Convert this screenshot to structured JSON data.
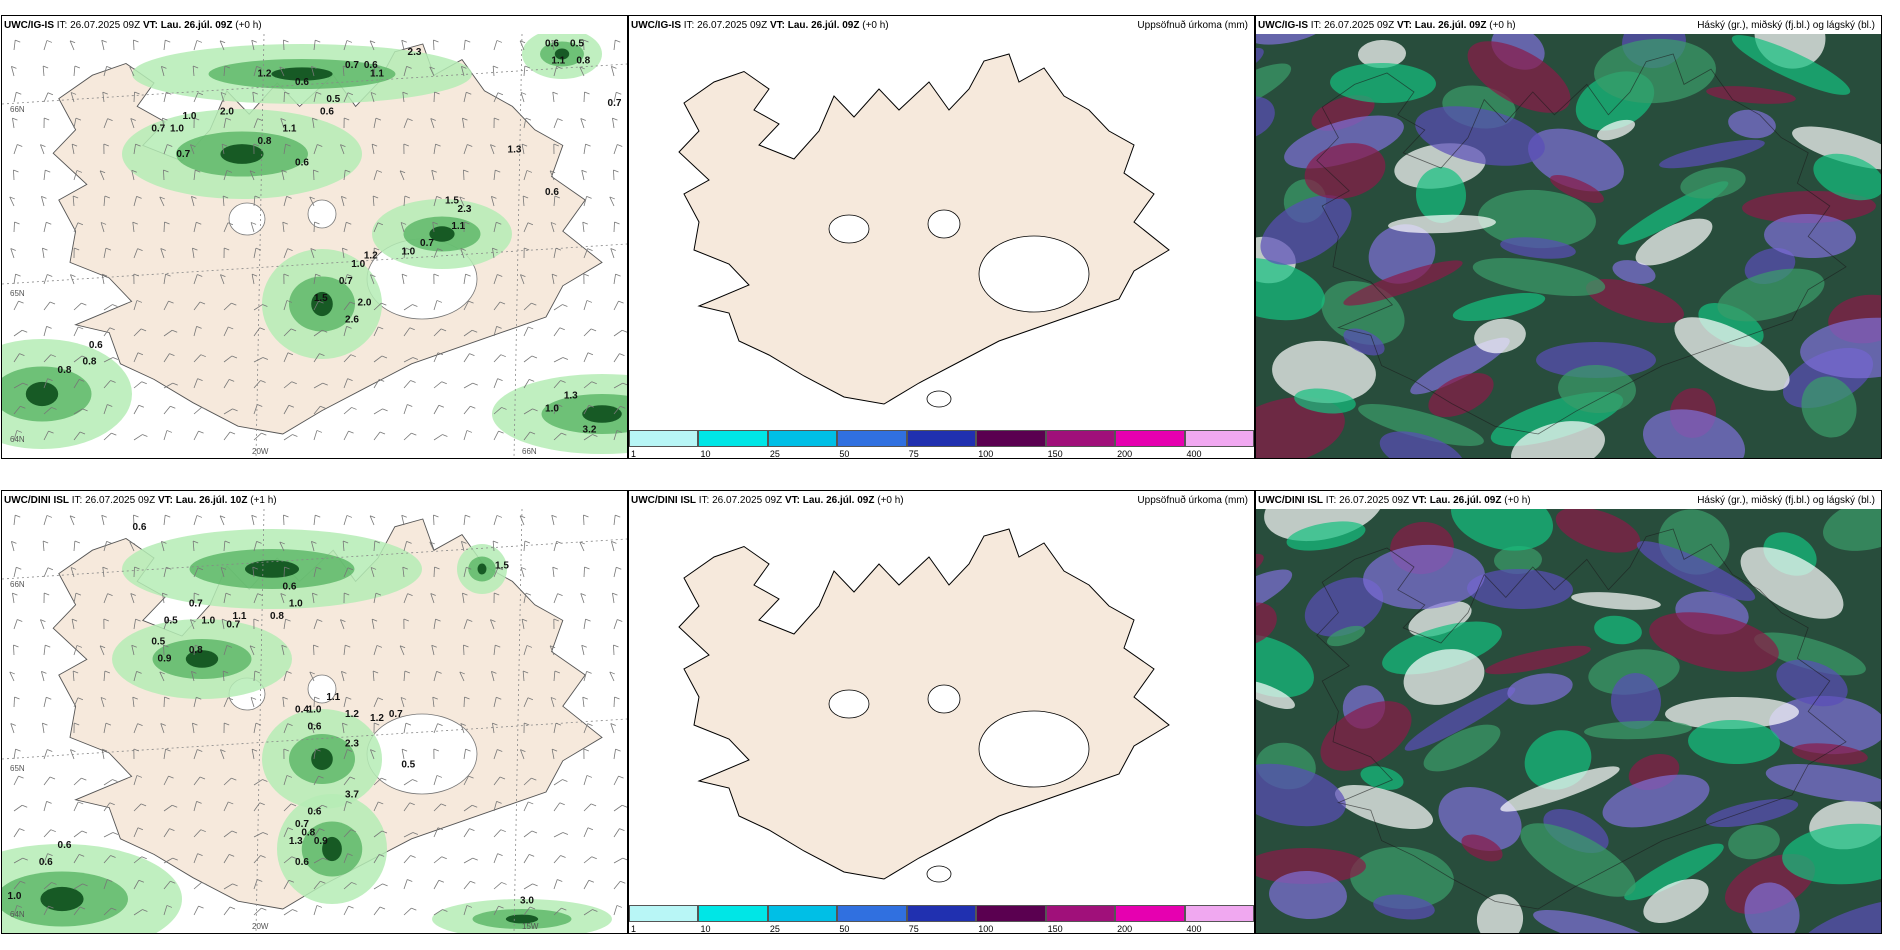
{
  "colors": {
    "land": "#f6e9dc",
    "sea": "#ffffff",
    "precip_light": "#b5ecb5",
    "precip_mid": "#53b15f",
    "precip_dark": "#0d4f1c",
    "cloud_dark": "#284d3c",
    "cloud_green": "#14c07f",
    "cloud_purple": "#5a4db8",
    "cloud_red": "#8a1a47",
    "legend": [
      "#b8f6f6",
      "#00e6e6",
      "#00bfe6",
      "#3070e0",
      "#2030b0",
      "#5a0050",
      "#a0107a",
      "#e600b0",
      "#f0a8f0"
    ]
  },
  "panels": [
    {
      "model": "UWC/IG-IS",
      "it": "IT: 26.07.2025 09Z",
      "vt_label": "VT:",
      "vt": "Lau. 26.júl. 09Z",
      "lead": "(+0 h)",
      "param": "",
      "coords": [
        "66N",
        "65N",
        "64N",
        "20W",
        "66N"
      ],
      "values": [
        {
          "label": "1.2",
          "cx": 0.42,
          "cy": 0.1
        },
        {
          "label": "1.1",
          "cx": 0.6,
          "cy": 0.1
        },
        {
          "label": "0.7",
          "cx": 0.56,
          "cy": 0.08
        },
        {
          "label": "0.6",
          "cx": 0.59,
          "cy": 0.08
        },
        {
          "label": "0.6",
          "cx": 0.48,
          "cy": 0.12
        },
        {
          "label": "2.3",
          "cx": 0.66,
          "cy": 0.05
        },
        {
          "label": "0.7",
          "cx": 0.25,
          "cy": 0.23
        },
        {
          "label": "1.0",
          "cx": 0.28,
          "cy": 0.23
        },
        {
          "label": "2.0",
          "cx": 0.36,
          "cy": 0.19
        },
        {
          "label": "1.0",
          "cx": 0.3,
          "cy": 0.2
        },
        {
          "label": "0.7",
          "cx": 0.29,
          "cy": 0.29
        },
        {
          "label": "1.1",
          "cx": 0.46,
          "cy": 0.23
        },
        {
          "label": "0.8",
          "cx": 0.42,
          "cy": 0.26
        },
        {
          "label": "0.6",
          "cx": 0.48,
          "cy": 0.31
        },
        {
          "label": "0.5",
          "cx": 0.53,
          "cy": 0.16
        },
        {
          "label": "0.6",
          "cx": 0.52,
          "cy": 0.19
        },
        {
          "label": "1.3",
          "cx": 0.82,
          "cy": 0.28
        },
        {
          "label": "1.5",
          "cx": 0.72,
          "cy": 0.4
        },
        {
          "label": "2.3",
          "cx": 0.74,
          "cy": 0.42
        },
        {
          "label": "1.1",
          "cx": 0.73,
          "cy": 0.46
        },
        {
          "label": "0.6",
          "cx": 0.88,
          "cy": 0.38
        },
        {
          "label": "0.7",
          "cx": 0.68,
          "cy": 0.5
        },
        {
          "label": "1.2",
          "cx": 0.59,
          "cy": 0.53
        },
        {
          "label": "1.0",
          "cx": 0.65,
          "cy": 0.52
        },
        {
          "label": "1.0",
          "cx": 0.57,
          "cy": 0.55
        },
        {
          "label": "0.7",
          "cx": 0.55,
          "cy": 0.59
        },
        {
          "label": "2.0",
          "cx": 0.58,
          "cy": 0.64
        },
        {
          "label": "2.6",
          "cx": 0.56,
          "cy": 0.68
        },
        {
          "label": "1.5",
          "cx": 0.51,
          "cy": 0.63
        },
        {
          "label": "0.6",
          "cx": 0.15,
          "cy": 0.74
        },
        {
          "label": "0.8",
          "cx": 0.14,
          "cy": 0.78
        },
        {
          "label": "0.8",
          "cx": 0.1,
          "cy": 0.8
        },
        {
          "label": "1.0",
          "cx": 0.88,
          "cy": 0.89
        },
        {
          "label": "1.3",
          "cx": 0.91,
          "cy": 0.86
        },
        {
          "label": "3.2",
          "cx": 0.94,
          "cy": 0.94
        },
        {
          "label": "0.6",
          "cx": 0.88,
          "cy": 0.03
        },
        {
          "label": "0.5",
          "cx": 0.92,
          "cy": 0.03
        },
        {
          "label": "1.1",
          "cx": 0.89,
          "cy": 0.07
        },
        {
          "label": "0.8",
          "cx": 0.93,
          "cy": 0.07
        },
        {
          "label": "0.7",
          "cx": 0.98,
          "cy": 0.17
        }
      ]
    },
    {
      "model": "UWC/IG-IS",
      "it": "IT: 26.07.2025 09Z",
      "vt_label": "VT:",
      "vt": "Lau. 26.júl. 09Z",
      "lead": "(+0 h)",
      "param": "Uppsöfnuð úrkoma (mm)",
      "legend_ticks": [
        "1",
        "10",
        "25",
        "50",
        "75",
        "100",
        "150",
        "200",
        "400"
      ]
    },
    {
      "model": "UWC/IG-IS",
      "it": "IT: 26.07.2025 09Z",
      "vt_label": "VT:",
      "vt": "Lau. 26.júl. 09Z",
      "lead": "(+0 h)",
      "param": "Háský (gr.), miðský (fj.bl.) og lágský (bl.)"
    },
    {
      "model": "UWC/DINI ISL",
      "it": "IT: 26.07.2025 09Z",
      "vt_label": "VT:",
      "vt": "Lau. 26.júl. 10Z",
      "lead": "(+1 h)",
      "param": "",
      "coords": [
        "66N",
        "65N",
        "64N",
        "20W",
        "15W"
      ],
      "values": [
        {
          "label": "0.6",
          "cx": 0.22,
          "cy": 0.05
        },
        {
          "label": "1.5",
          "cx": 0.8,
          "cy": 0.14
        },
        {
          "label": "0.6",
          "cx": 0.46,
          "cy": 0.19
        },
        {
          "label": "1.0",
          "cx": 0.47,
          "cy": 0.23
        },
        {
          "label": "0.8",
          "cx": 0.44,
          "cy": 0.26
        },
        {
          "label": "0.7",
          "cx": 0.31,
          "cy": 0.23
        },
        {
          "label": "1.0",
          "cx": 0.33,
          "cy": 0.27
        },
        {
          "label": "1.1",
          "cx": 0.38,
          "cy": 0.26
        },
        {
          "label": "0.7",
          "cx": 0.37,
          "cy": 0.28
        },
        {
          "label": "0.5",
          "cx": 0.27,
          "cy": 0.27
        },
        {
          "label": "0.5",
          "cx": 0.25,
          "cy": 0.32
        },
        {
          "label": "0.8",
          "cx": 0.31,
          "cy": 0.34
        },
        {
          "label": "0.9",
          "cx": 0.26,
          "cy": 0.36
        },
        {
          "label": "1.1",
          "cx": 0.53,
          "cy": 0.45
        },
        {
          "label": "0.4",
          "cx": 0.48,
          "cy": 0.48
        },
        {
          "label": "1.0",
          "cx": 0.5,
          "cy": 0.48
        },
        {
          "label": "1.2",
          "cx": 0.56,
          "cy": 0.49
        },
        {
          "label": "1.2",
          "cx": 0.6,
          "cy": 0.5
        },
        {
          "label": "0.7",
          "cx": 0.63,
          "cy": 0.49
        },
        {
          "label": "0.6",
          "cx": 0.5,
          "cy": 0.52
        },
        {
          "label": "2.3",
          "cx": 0.56,
          "cy": 0.56
        },
        {
          "label": "0.5",
          "cx": 0.65,
          "cy": 0.61
        },
        {
          "label": "3.7",
          "cx": 0.56,
          "cy": 0.68
        },
        {
          "label": "0.6",
          "cx": 0.5,
          "cy": 0.72
        },
        {
          "label": "0.7",
          "cx": 0.48,
          "cy": 0.75
        },
        {
          "label": "0.8",
          "cx": 0.49,
          "cy": 0.77
        },
        {
          "label": "0.9",
          "cx": 0.51,
          "cy": 0.79
        },
        {
          "label": "1.3",
          "cx": 0.47,
          "cy": 0.79
        },
        {
          "label": "0.6",
          "cx": 0.48,
          "cy": 0.84
        },
        {
          "label": "0.6",
          "cx": 0.1,
          "cy": 0.8
        },
        {
          "label": "0.6",
          "cx": 0.07,
          "cy": 0.84
        },
        {
          "label": "1.0",
          "cx": 0.02,
          "cy": 0.92
        },
        {
          "label": "3.0",
          "cx": 0.84,
          "cy": 0.93
        }
      ]
    },
    {
      "model": "UWC/DINI ISL",
      "it": "IT: 26.07.2025 09Z",
      "vt_label": "VT:",
      "vt": "Lau. 26.júl. 09Z",
      "lead": "(+0 h)",
      "param": "Uppsöfnuð úrkoma (mm)",
      "legend_ticks": [
        "1",
        "10",
        "25",
        "50",
        "75",
        "100",
        "150",
        "200",
        "400"
      ]
    },
    {
      "model": "UWC/DINI ISL",
      "it": "IT: 26.07.2025 09Z",
      "vt_label": "VT:",
      "vt": "Lau. 26.júl. 09Z",
      "lead": "(+0 h)",
      "param": "Háský (gr.), miðský (fj.bl.) og lágský (bl.)"
    }
  ]
}
